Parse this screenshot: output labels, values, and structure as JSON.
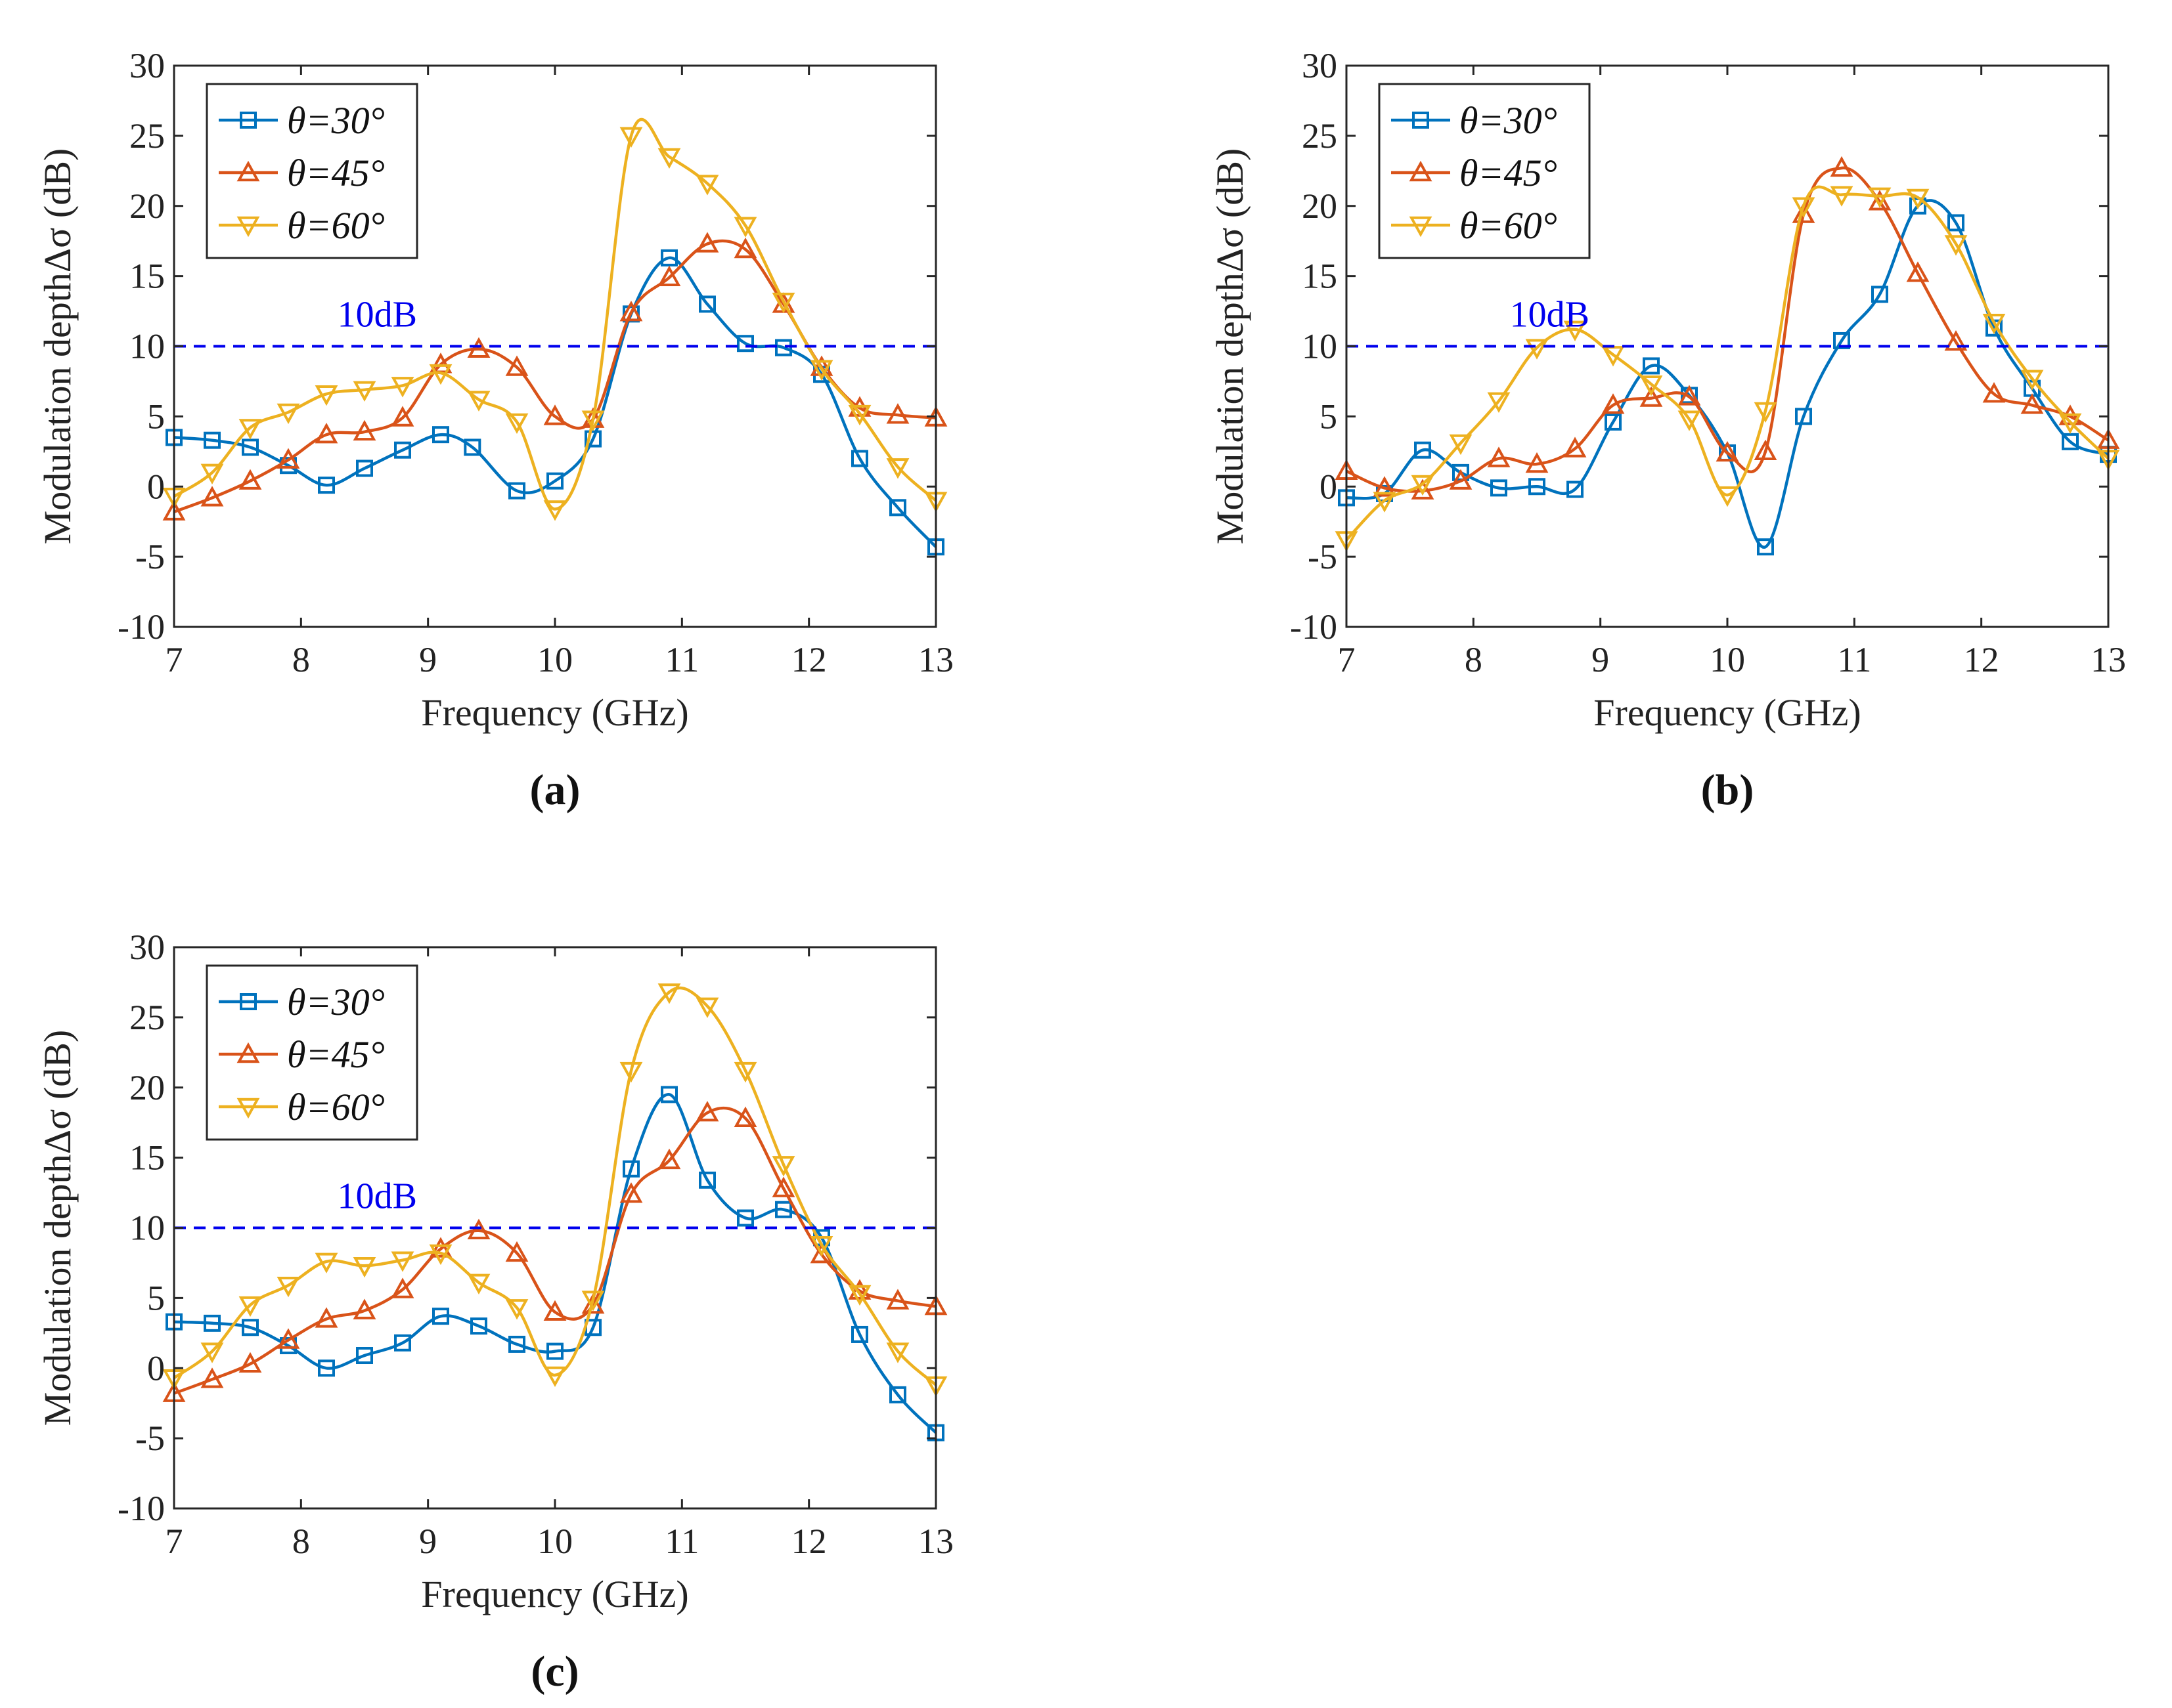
{
  "figure": {
    "colors": {
      "theta30": "#0072BD",
      "theta45": "#D95319",
      "theta60": "#EDB120",
      "ref": "#0000EE",
      "axis": "#262626"
    }
  },
  "chart_data": [
    {
      "type": "line",
      "caption": "(a)",
      "xlabel": "Frequency (GHz)",
      "ylabel": "Modulation depthΔσ (dB)",
      "xlim": [
        7,
        13
      ],
      "ylim": [
        -10,
        30
      ],
      "xticks": [
        7,
        8,
        9,
        10,
        11,
        12,
        13
      ],
      "yticks": [
        -10,
        -5,
        0,
        5,
        10,
        15,
        20,
        25,
        30
      ],
      "legend_position": "top-left",
      "reference_line": {
        "y": 10,
        "label": "10dB"
      },
      "series": [
        {
          "name": "θ=30°",
          "marker": "square",
          "color_key": "theta30",
          "x": [
            7.0,
            7.3,
            7.6,
            7.9,
            8.2,
            8.5,
            8.8,
            9.1,
            9.35,
            9.7,
            10.0,
            10.3,
            10.6,
            10.9,
            11.2,
            11.5,
            11.8,
            12.1,
            12.4,
            12.7,
            13.0
          ],
          "y": [
            3.5,
            3.3,
            2.8,
            1.5,
            0.1,
            1.3,
            2.6,
            3.7,
            2.8,
            -0.3,
            0.4,
            3.4,
            12.3,
            16.3,
            13.0,
            10.2,
            9.9,
            8.0,
            2.0,
            -1.5,
            -4.3
          ]
        },
        {
          "name": "θ=45°",
          "marker": "triangle-up",
          "color_key": "theta45",
          "x": [
            7.0,
            7.3,
            7.6,
            7.9,
            8.2,
            8.5,
            8.8,
            9.1,
            9.4,
            9.7,
            10.0,
            10.3,
            10.6,
            10.9,
            11.2,
            11.5,
            11.8,
            12.1,
            12.4,
            12.7,
            13.0
          ],
          "y": [
            -1.8,
            -0.8,
            0.4,
            1.9,
            3.7,
            3.9,
            4.9,
            8.7,
            9.8,
            8.5,
            5.0,
            4.8,
            12.4,
            14.9,
            17.3,
            16.9,
            13.0,
            8.5,
            5.6,
            5.1,
            4.9
          ]
        },
        {
          "name": "θ=60°",
          "marker": "triangle-down",
          "color_key": "theta60",
          "x": [
            7.0,
            7.3,
            7.6,
            7.9,
            8.2,
            8.5,
            8.8,
            9.1,
            9.4,
            9.7,
            10.0,
            10.3,
            10.6,
            10.9,
            11.2,
            11.5,
            11.8,
            12.1,
            12.4,
            12.7,
            13.0
          ],
          "y": [
            -0.7,
            1.0,
            4.2,
            5.3,
            6.6,
            6.9,
            7.2,
            8.1,
            6.2,
            4.6,
            -1.6,
            4.8,
            25.0,
            23.5,
            21.6,
            18.6,
            13.2,
            8.4,
            5.2,
            1.4,
            -1.0
          ]
        }
      ]
    },
    {
      "type": "line",
      "caption": "(b)",
      "xlabel": "Frequency (GHz)",
      "ylabel": "Modulation depthΔσ (dB)",
      "xlim": [
        7,
        13
      ],
      "ylim": [
        -10,
        30
      ],
      "xticks": [
        7,
        8,
        9,
        10,
        11,
        12,
        13
      ],
      "yticks": [
        -10,
        -5,
        0,
        5,
        10,
        15,
        20,
        25,
        30
      ],
      "legend_position": "top-left",
      "reference_line": {
        "y": 10,
        "label": "10dB"
      },
      "series": [
        {
          "name": "θ=30°",
          "marker": "square",
          "color_key": "theta30",
          "x": [
            7.0,
            7.3,
            7.6,
            7.9,
            8.2,
            8.5,
            8.8,
            9.1,
            9.4,
            9.7,
            10.0,
            10.3,
            10.6,
            10.9,
            11.2,
            11.5,
            11.8,
            12.1,
            12.4,
            12.7,
            13.0
          ],
          "y": [
            -0.8,
            -0.5,
            2.6,
            1.0,
            -0.1,
            0.0,
            -0.2,
            4.6,
            8.6,
            6.5,
            2.4,
            -4.3,
            5.0,
            10.4,
            13.7,
            20.0,
            18.8,
            11.3,
            7.0,
            3.2,
            2.3
          ]
        },
        {
          "name": "θ=45°",
          "marker": "triangle-up",
          "color_key": "theta45",
          "x": [
            7.0,
            7.3,
            7.6,
            7.9,
            8.2,
            8.5,
            8.8,
            9.1,
            9.4,
            9.7,
            10.0,
            10.3,
            10.6,
            10.9,
            11.2,
            11.5,
            11.8,
            12.1,
            12.4,
            12.7,
            13.0
          ],
          "y": [
            1.1,
            -0.1,
            -0.3,
            0.4,
            2.0,
            1.6,
            2.7,
            5.8,
            6.3,
            6.4,
            2.4,
            2.5,
            19.4,
            22.7,
            20.3,
            15.2,
            10.3,
            6.6,
            5.8,
            5.0,
            3.3
          ]
        },
        {
          "name": "θ=60°",
          "marker": "triangle-down",
          "color_key": "theta60",
          "x": [
            7.0,
            7.3,
            7.6,
            7.9,
            8.2,
            8.5,
            8.8,
            9.1,
            9.4,
            9.7,
            10.0,
            10.3,
            10.6,
            10.9,
            11.2,
            11.5,
            11.8,
            12.1,
            12.4,
            12.7,
            13.0
          ],
          "y": [
            -3.8,
            -1.0,
            0.2,
            3.1,
            6.1,
            9.9,
            11.2,
            9.4,
            7.3,
            4.8,
            -0.6,
            5.4,
            20.0,
            20.8,
            20.7,
            20.6,
            17.3,
            11.7,
            7.7,
            4.6,
            2.0
          ]
        }
      ]
    },
    {
      "type": "line",
      "caption": "(c)",
      "xlabel": "Frequency (GHz)",
      "ylabel": "Modulation depthΔσ (dB)",
      "xlim": [
        7,
        13
      ],
      "ylim": [
        -10,
        30
      ],
      "xticks": [
        7,
        8,
        9,
        10,
        11,
        12,
        13
      ],
      "yticks": [
        -10,
        -5,
        0,
        5,
        10,
        15,
        20,
        25,
        30
      ],
      "legend_position": "top-left",
      "reference_line": {
        "y": 10,
        "label": "10dB"
      },
      "series": [
        {
          "name": "θ=30°",
          "marker": "square",
          "color_key": "theta30",
          "x": [
            7.0,
            7.3,
            7.6,
            7.9,
            8.2,
            8.5,
            8.8,
            9.1,
            9.4,
            9.7,
            10.0,
            10.3,
            10.6,
            10.9,
            11.2,
            11.5,
            11.8,
            12.1,
            12.4,
            12.7,
            13.0
          ],
          "y": [
            3.3,
            3.2,
            2.9,
            1.6,
            0.0,
            0.9,
            1.8,
            3.7,
            3.0,
            1.7,
            1.2,
            2.9,
            14.2,
            19.5,
            13.4,
            10.7,
            11.3,
            9.3,
            2.4,
            -1.9,
            -4.6
          ]
        },
        {
          "name": "θ=45°",
          "marker": "triangle-up",
          "color_key": "theta45",
          "x": [
            7.0,
            7.3,
            7.6,
            7.9,
            8.2,
            8.5,
            8.8,
            9.1,
            9.4,
            9.7,
            10.0,
            10.3,
            10.6,
            10.9,
            11.2,
            11.5,
            11.8,
            12.1,
            12.4,
            12.7,
            13.0
          ],
          "y": [
            -1.8,
            -0.8,
            0.3,
            2.0,
            3.5,
            4.1,
            5.6,
            8.5,
            9.8,
            8.2,
            4.0,
            4.5,
            12.4,
            14.8,
            18.2,
            17.8,
            12.8,
            8.1,
            5.5,
            4.8,
            4.4
          ]
        },
        {
          "name": "θ=60°",
          "marker": "triangle-down",
          "color_key": "theta60",
          "x": [
            7.0,
            7.3,
            7.6,
            7.9,
            8.2,
            8.5,
            8.8,
            9.1,
            9.4,
            9.7,
            10.0,
            10.3,
            10.6,
            10.9,
            11.2,
            11.5,
            11.8,
            12.1,
            12.4,
            12.7,
            13.0
          ],
          "y": [
            -0.7,
            1.2,
            4.5,
            5.9,
            7.6,
            7.3,
            7.7,
            8.2,
            6.1,
            4.3,
            -0.5,
            4.9,
            21.2,
            26.8,
            25.8,
            21.2,
            14.5,
            8.8,
            5.3,
            1.2,
            -1.2
          ]
        }
      ]
    }
  ]
}
